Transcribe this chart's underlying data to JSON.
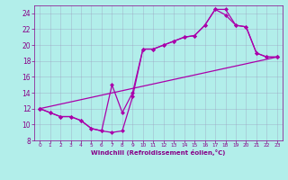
{
  "xlabel": "Windchill (Refroidissement éolien,°C)",
  "bg_color": "#b2eeea",
  "line_color": "#aa00aa",
  "xlim": [
    -0.5,
    23.5
  ],
  "ylim": [
    8,
    25
  ],
  "yticks": [
    8,
    10,
    12,
    14,
    16,
    18,
    20,
    22,
    24
  ],
  "xticks": [
    0,
    1,
    2,
    3,
    4,
    5,
    6,
    7,
    8,
    9,
    10,
    11,
    12,
    13,
    14,
    15,
    16,
    17,
    18,
    19,
    20,
    21,
    22,
    23
  ],
  "line1_x": [
    0,
    1,
    2,
    3,
    4,
    5,
    6,
    7,
    8,
    9,
    10,
    11,
    12,
    13,
    14,
    15,
    16,
    17,
    18,
    19,
    20,
    21,
    22,
    23
  ],
  "line1_y": [
    12,
    11.5,
    11,
    11,
    10.5,
    9.5,
    9.2,
    9.0,
    9.2,
    13.5,
    19.5,
    19.5,
    20,
    20.5,
    21,
    21.2,
    22.5,
    24.5,
    24.5,
    22.5,
    22.3,
    19,
    18.5,
    18.5
  ],
  "line2_x": [
    0,
    1,
    2,
    3,
    4,
    5,
    6,
    7,
    8,
    9,
    10,
    11,
    12,
    13,
    14,
    15,
    16,
    17,
    18,
    19,
    20,
    21,
    22,
    23
  ],
  "line2_y": [
    12,
    11.5,
    11,
    11,
    10.5,
    9.5,
    9.2,
    15.0,
    11.5,
    14.0,
    19.5,
    19.5,
    20,
    20.5,
    21,
    21.2,
    22.5,
    24.5,
    23.8,
    22.5,
    22.3,
    19,
    18.5,
    18.5
  ],
  "line3_x": [
    0,
    23
  ],
  "line3_y": [
    12,
    18.5
  ],
  "grid_color": "#9999bb",
  "font_color": "#880088",
  "markersize": 2.5,
  "linewidth": 0.9
}
